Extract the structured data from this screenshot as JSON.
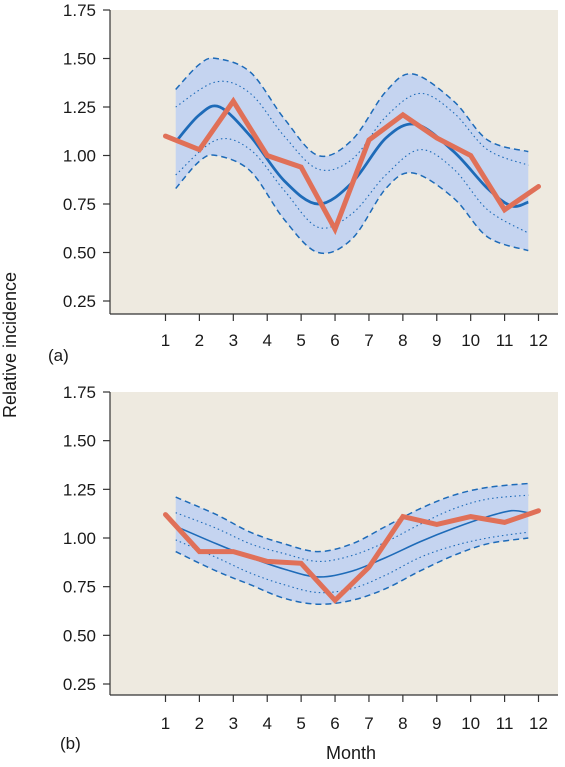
{
  "chart_data": {
    "ylabel": "Relative incidence",
    "xlabel": "Month",
    "colors": {
      "panel_bg": "#eeeae0",
      "band_fill": "#c5d4f0",
      "band_line": "#1e6bb8",
      "fit_line": "#1e6bb8",
      "observed_line": "#e07058",
      "axis": "#333333"
    },
    "panels": [
      {
        "label": "(a)",
        "type": "line",
        "x_ticks": [
          "1",
          "2",
          "3",
          "4",
          "5",
          "6",
          "7",
          "8",
          "9",
          "10",
          "11",
          "12"
        ],
        "y_ticks": [
          "0.25",
          "0.50",
          "0.75",
          "1.00",
          "1.25",
          "1.50",
          "1.75"
        ],
        "ylim": [
          0.25,
          1.75
        ],
        "series": [
          {
            "name": "observed",
            "x": [
              1,
              2,
              3,
              4,
              5,
              6,
              7,
              8,
              9,
              10,
              11,
              12
            ],
            "values": [
              1.1,
              1.03,
              1.28,
              1.0,
              0.94,
              0.62,
              1.08,
              1.21,
              1.09,
              1.0,
              0.72,
              0.84
            ]
          },
          {
            "name": "fitted",
            "x": [
              1.3,
              2,
              2.6,
              3.5,
              4.5,
              5.5,
              6.5,
              7.5,
              8.4,
              9.5,
              10.5,
              11.2,
              11.7
            ],
            "values": [
              1.07,
              1.21,
              1.25,
              1.1,
              0.87,
              0.75,
              0.86,
              1.09,
              1.16,
              1.02,
              0.83,
              0.74,
              0.76
            ]
          },
          {
            "name": "inner-upper",
            "x": [
              1.3,
              2.5,
              3.5,
              4.5,
              5.5,
              6.5,
              7.5,
              8.5,
              9.5,
              10.5,
              11.7
            ],
            "values": [
              1.25,
              1.38,
              1.32,
              1.1,
              0.93,
              0.98,
              1.2,
              1.32,
              1.22,
              1.03,
              0.95
            ]
          },
          {
            "name": "inner-lower",
            "x": [
              1.3,
              2.5,
              3.5,
              4.5,
              5.5,
              6.5,
              7.5,
              8.5,
              9.5,
              10.5,
              11.7
            ],
            "values": [
              0.9,
              1.08,
              1.03,
              0.82,
              0.63,
              0.7,
              0.9,
              1.03,
              0.93,
              0.72,
              0.6
            ]
          },
          {
            "name": "outer-upper",
            "x": [
              1.3,
              2,
              2.5,
              3.5,
              4.5,
              5.5,
              6.5,
              7.5,
              8.3,
              9.5,
              10.5,
              11.7
            ],
            "values": [
              1.34,
              1.47,
              1.5,
              1.43,
              1.19,
              1.0,
              1.08,
              1.33,
              1.42,
              1.28,
              1.08,
              1.02
            ]
          },
          {
            "name": "outer-lower",
            "x": [
              1.3,
              2,
              2.5,
              3.5,
              4.5,
              5.5,
              6.5,
              7.5,
              8.3,
              9.5,
              10.5,
              11.7
            ],
            "values": [
              0.83,
              0.97,
              1.0,
              0.92,
              0.67,
              0.5,
              0.57,
              0.83,
              0.91,
              0.78,
              0.58,
              0.51
            ]
          }
        ]
      },
      {
        "label": "(b)",
        "type": "line",
        "x_ticks": [
          "1",
          "2",
          "3",
          "4",
          "5",
          "6",
          "7",
          "8",
          "9",
          "10",
          "11",
          "12"
        ],
        "y_ticks": [
          "0.25",
          "0.50",
          "0.75",
          "1.00",
          "1.25",
          "1.50",
          "1.75"
        ],
        "ylim": [
          0.25,
          1.75
        ],
        "series": [
          {
            "name": "observed",
            "x": [
              1,
              2,
              3,
              4,
              5,
              6,
              7,
              8,
              9,
              10,
              11,
              12
            ],
            "values": [
              1.12,
              0.93,
              0.93,
              0.88,
              0.87,
              0.68,
              0.85,
              1.11,
              1.07,
              1.11,
              1.08,
              1.14
            ]
          },
          {
            "name": "fitted",
            "x": [
              1.3,
              2.5,
              3.5,
              4.5,
              5.5,
              6.5,
              7.5,
              8.5,
              9.5,
              10.5,
              11.2,
              11.7
            ],
            "values": [
              1.06,
              0.97,
              0.9,
              0.84,
              0.8,
              0.83,
              0.9,
              0.98,
              1.05,
              1.11,
              1.14,
              1.13
            ]
          },
          {
            "name": "inner-upper",
            "x": [
              1.3,
              2.5,
              3.5,
              4.5,
              5.5,
              6.5,
              7.5,
              8.5,
              9.5,
              10.5,
              11.7
            ],
            "values": [
              1.13,
              1.05,
              0.97,
              0.92,
              0.88,
              0.91,
              0.98,
              1.07,
              1.15,
              1.2,
              1.22
            ]
          },
          {
            "name": "inner-lower",
            "x": [
              1.3,
              2.5,
              3.5,
              4.5,
              5.5,
              6.5,
              7.5,
              8.5,
              9.5,
              10.5,
              11.7
            ],
            "values": [
              0.99,
              0.9,
              0.82,
              0.76,
              0.72,
              0.74,
              0.81,
              0.9,
              0.96,
              1.0,
              1.03
            ]
          },
          {
            "name": "outer-upper",
            "x": [
              1.3,
              2.5,
              3.5,
              4.5,
              5.5,
              6.5,
              7.5,
              8.5,
              9.5,
              10.5,
              11.7
            ],
            "values": [
              1.21,
              1.12,
              1.03,
              0.97,
              0.93,
              0.97,
              1.06,
              1.15,
              1.22,
              1.26,
              1.28
            ]
          },
          {
            "name": "outer-lower",
            "x": [
              1.3,
              2.5,
              3.5,
              4.5,
              5.5,
              6.5,
              7.5,
              8.5,
              9.5,
              10.5,
              11.7
            ],
            "values": [
              0.93,
              0.83,
              0.76,
              0.69,
              0.66,
              0.68,
              0.74,
              0.83,
              0.91,
              0.97,
              1.0
            ]
          }
        ]
      }
    ]
  }
}
